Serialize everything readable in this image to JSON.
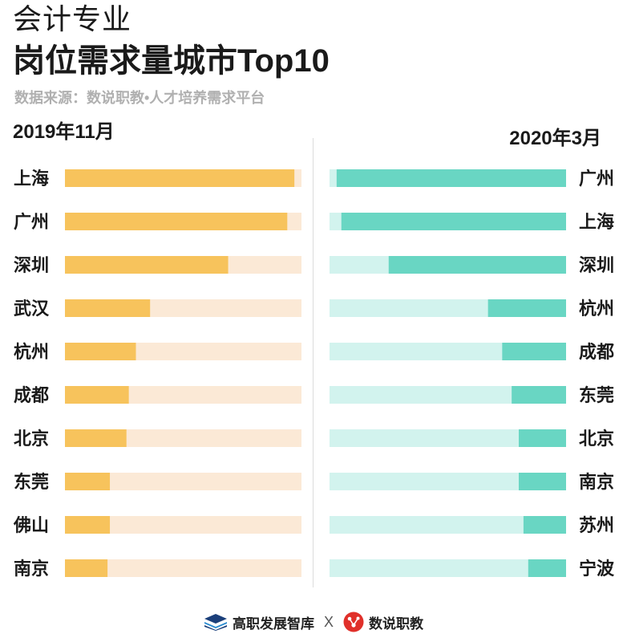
{
  "header": {
    "title_line1": "会计专业",
    "title_line2": "岗位需求量城市Top10",
    "source": "数据来源：数说职教•人才培养需求平台"
  },
  "footer": {
    "brand1": "高职发展智库",
    "separator": "X",
    "brand2": "数说职教"
  },
  "colors": {
    "left_fill": "#f7c35c",
    "left_track": "#fbe9d6",
    "right_fill": "#69d6c3",
    "right_track": "#d2f3ee",
    "text": "#1a1a1a"
  },
  "chart_data": [
    {
      "type": "bar",
      "title": "2019年11月",
      "orientation": "horizontal",
      "direction": "left-to-right",
      "categories": [
        "上海",
        "广州",
        "深圳",
        "武汉",
        "杭州",
        "成都",
        "北京",
        "东莞",
        "佛山",
        "南京"
      ],
      "values": [
        97,
        94,
        69,
        36,
        30,
        27,
        26,
        19,
        19,
        18
      ],
      "xlim": [
        0,
        100
      ],
      "unit": "relative share of max demand (%)"
    },
    {
      "type": "bar",
      "title": "2020年3月",
      "orientation": "horizontal",
      "direction": "right-to-left",
      "categories": [
        "广州",
        "上海",
        "深圳",
        "杭州",
        "成都",
        "东莞",
        "北京",
        "南京",
        "苏州",
        "宁波"
      ],
      "values": [
        97,
        95,
        75,
        33,
        27,
        23,
        20,
        20,
        18,
        16
      ],
      "xlim": [
        0,
        100
      ],
      "unit": "relative share of max demand (%)"
    }
  ]
}
